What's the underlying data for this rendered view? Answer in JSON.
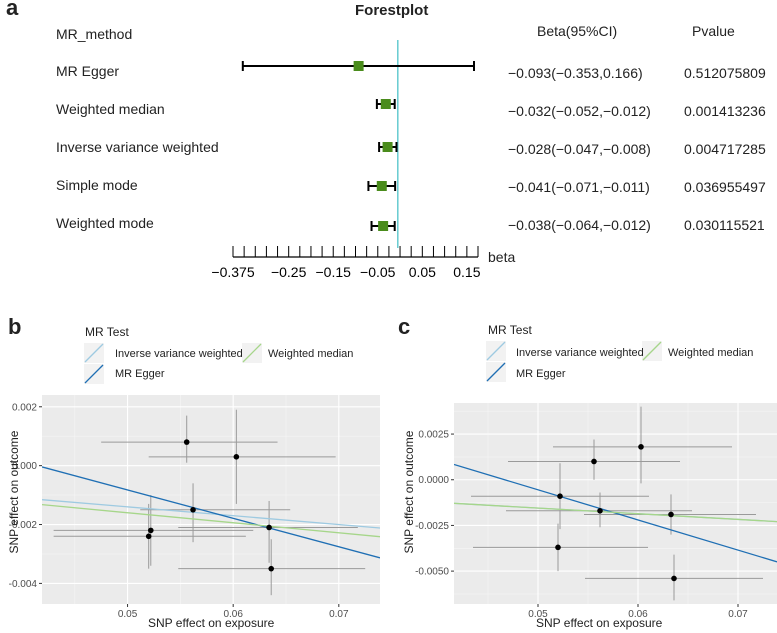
{
  "chart_data": [
    {
      "panel": "a",
      "type": "forest",
      "title": "Forestplot",
      "xlabel": "beta",
      "xlim": [
        -0.375,
        0.175
      ],
      "ticks": [
        -0.375,
        -0.25,
        -0.15,
        -0.05,
        0.05,
        0.15
      ],
      "tick_labels": [
        "−0.375",
        "−0.25",
        "−0.15",
        "−0.05",
        "0.05",
        "0.15"
      ],
      "reference_line": -0.005,
      "column_headers": {
        "method": "MR_method",
        "beta": "Beta(95%CI)",
        "pvalue": "Pvalue"
      },
      "rows": [
        {
          "method": "MR Egger",
          "beta": -0.093,
          "lo": -0.353,
          "hi": 0.166,
          "beta_text": "−0.093(−0.353,0.166)",
          "pvalue": "0.512075809"
        },
        {
          "method": "Weighted median",
          "beta": -0.032,
          "lo": -0.052,
          "hi": -0.012,
          "beta_text": "−0.032(−0.052,−0.012)",
          "pvalue": "0.001413236"
        },
        {
          "method": "Inverse variance weighted",
          "beta": -0.028,
          "lo": -0.047,
          "hi": -0.008,
          "beta_text": "−0.028(−0.047,−0.008)",
          "pvalue": "0.004717285"
        },
        {
          "method": "Simple mode",
          "beta": -0.041,
          "lo": -0.071,
          "hi": -0.011,
          "beta_text": "−0.041(−0.071,−0.011)",
          "pvalue": "0.036955497"
        },
        {
          "method": "Weighted mode",
          "beta": -0.038,
          "lo": -0.064,
          "hi": -0.012,
          "beta_text": "−0.038(−0.064,−0.012)",
          "pvalue": "0.030115521"
        }
      ],
      "colors": {
        "marker": "#4a8c1c",
        "reference": "#4fc3c9",
        "whisker": "#000000"
      }
    },
    {
      "panel": "b",
      "type": "scatter",
      "xlabel": "SNP effect on exposure",
      "ylabel": "SNP effect on outcome",
      "xlim": [
        0.0419,
        0.0739
      ],
      "ylim": [
        -0.0047,
        0.0024
      ],
      "xticks": [
        0.05,
        0.06,
        0.07
      ],
      "xtick_labels": [
        "0.05",
        "0.06",
        "0.07"
      ],
      "yticks": [
        0.002,
        0.0,
        -0.002,
        -0.004
      ],
      "ytick_labels": [
        "0.002",
        "0.000",
        "-0.002",
        "-0.004"
      ],
      "legend": {
        "title": "MR Test",
        "entries": [
          "Inverse variance weighted",
          "MR Egger",
          "Weighted median"
        ]
      },
      "points": [
        {
          "x": 0.0556,
          "y": 0.0008,
          "xlo": 0.0475,
          "xhi": 0.0642,
          "ylo": 0.0001,
          "yhi": 0.0017
        },
        {
          "x": 0.0603,
          "y": 0.0003,
          "xlo": 0.052,
          "xhi": 0.0697,
          "ylo": -0.0013,
          "yhi": 0.0019
        },
        {
          "x": 0.0562,
          "y": -0.0015,
          "xlo": 0.0512,
          "xhi": 0.0654,
          "ylo": -0.0026,
          "yhi": -0.0006
        },
        {
          "x": 0.0634,
          "y": -0.0021,
          "xlo": 0.0548,
          "xhi": 0.0718,
          "ylo": -0.0033,
          "yhi": -0.0012
        },
        {
          "x": 0.0522,
          "y": -0.0022,
          "xlo": 0.043,
          "xhi": 0.0619,
          "ylo": -0.0034,
          "yhi": -0.001
        },
        {
          "x": 0.052,
          "y": -0.0024,
          "xlo": 0.043,
          "xhi": 0.0612,
          "ylo": -0.0035,
          "yhi": -0.0013
        },
        {
          "x": 0.0636,
          "y": -0.0035,
          "xlo": 0.0548,
          "xhi": 0.0725,
          "ylo": -0.0044,
          "yhi": -0.0025
        }
      ],
      "lines": [
        {
          "name": "Inverse variance weighted",
          "slope": -0.03,
          "intercept": 0.0001,
          "color": "#9ecae1"
        },
        {
          "name": "MR Egger",
          "slope": -0.0965,
          "intercept": 0.004,
          "color": "#1f6fb4"
        },
        {
          "name": "Weighted median",
          "slope": -0.034,
          "intercept": 0.0001,
          "color": "#a6d68a"
        }
      ]
    },
    {
      "panel": "c",
      "type": "scatter",
      "xlabel": "SNP effect on exposure",
      "ylabel": "SNP effect on outcome",
      "xlim": [
        0.0416,
        0.0739
      ],
      "ylim": [
        -0.0068,
        0.0042
      ],
      "xticks": [
        0.05,
        0.06,
        0.07
      ],
      "xtick_labels": [
        "0.05",
        "0.06",
        "0.07"
      ],
      "yticks": [
        0.0025,
        0.0,
        -0.0025,
        -0.005
      ],
      "ytick_labels": [
        "0.0025",
        "0.0000",
        "-0.0025",
        "-0.0050"
      ],
      "legend": {
        "title": "MR Test",
        "entries": [
          "Inverse variance weighted",
          "MR Egger",
          "Weighted median"
        ]
      },
      "points": [
        {
          "x": 0.0603,
          "y": 0.0018,
          "xlo": 0.0515,
          "xhi": 0.0694,
          "ylo": -0.0002,
          "yhi": 0.004
        },
        {
          "x": 0.0556,
          "y": 0.001,
          "xlo": 0.047,
          "xhi": 0.0642,
          "ylo": 0.0,
          "yhi": 0.0022
        },
        {
          "x": 0.0522,
          "y": -0.0009,
          "xlo": 0.0433,
          "xhi": 0.0611,
          "ylo": -0.0027,
          "yhi": 0.0009
        },
        {
          "x": 0.0562,
          "y": -0.0017,
          "xlo": 0.0468,
          "xhi": 0.0654,
          "ylo": -0.0026,
          "yhi": -0.0007
        },
        {
          "x": 0.0633,
          "y": -0.0019,
          "xlo": 0.0546,
          "xhi": 0.0718,
          "ylo": -0.003,
          "yhi": -0.0008
        },
        {
          "x": 0.052,
          "y": -0.0037,
          "xlo": 0.0435,
          "xhi": 0.061,
          "ylo": -0.005,
          "yhi": -0.0024
        },
        {
          "x": 0.0636,
          "y": -0.0054,
          "xlo": 0.0547,
          "xhi": 0.0725,
          "ylo": -0.0066,
          "yhi": -0.0041
        }
      ],
      "lines": [
        {
          "name": "Inverse variance weighted",
          "slope": -0.031,
          "intercept": 0.0,
          "color": "#9ecae1"
        },
        {
          "name": "MR Egger",
          "slope": -0.165,
          "intercept": 0.0077,
          "color": "#1f6fb4"
        },
        {
          "name": "Weighted median",
          "slope": -0.031,
          "intercept": 0.0,
          "color": "#a6d68a"
        }
      ]
    }
  ],
  "panels": {
    "a": "a",
    "b": "b",
    "c": "c"
  }
}
